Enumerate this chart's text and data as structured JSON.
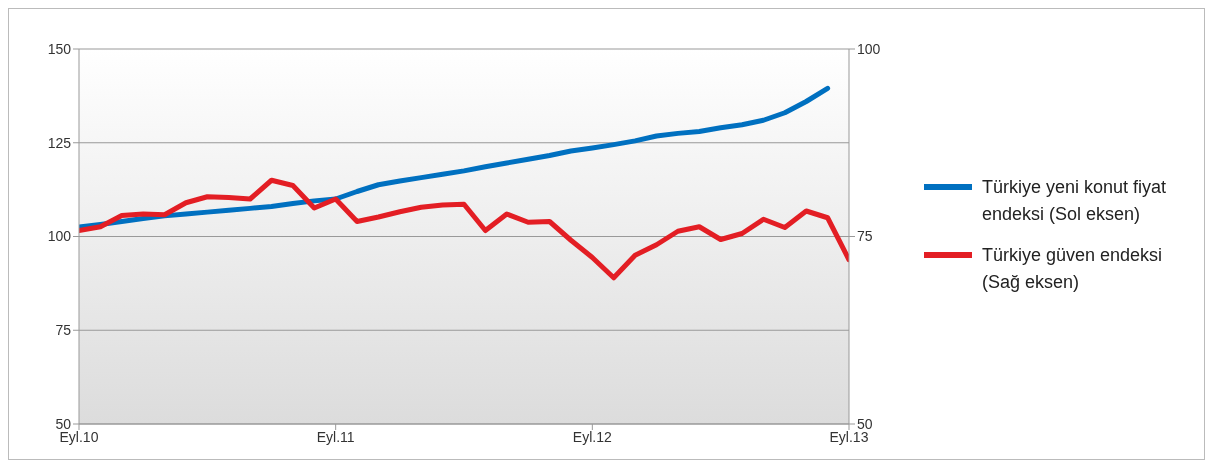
{
  "chart_data": {
    "type": "line",
    "x": [
      "2010-09",
      "2010-10",
      "2010-11",
      "2010-12",
      "2011-01",
      "2011-02",
      "2011-03",
      "2011-04",
      "2011-05",
      "2011-06",
      "2011-07",
      "2011-08",
      "2011-09",
      "2011-10",
      "2011-11",
      "2011-12",
      "2012-01",
      "2012-02",
      "2012-03",
      "2012-04",
      "2012-05",
      "2012-06",
      "2012-07",
      "2012-08",
      "2012-09",
      "2012-10",
      "2012-11",
      "2012-12",
      "2013-01",
      "2013-02",
      "2013-03",
      "2013-04",
      "2013-05",
      "2013-06",
      "2013-07",
      "2013-08",
      "2013-09"
    ],
    "series": [
      {
        "name": "Türkiye yeni konut fiyat endeksi (Sol eksen)",
        "color": "#0070c0",
        "values": [
          102.5,
          103.2,
          104,
          104.8,
          105.5,
          106,
          106.5,
          107,
          107.5,
          108,
          108.8,
          109.5,
          110,
          112,
          113.8,
          114.8,
          115.7,
          116.6,
          117.5,
          118.6,
          119.6,
          120.6,
          121.6,
          122.8,
          123.6,
          124.5,
          125.5,
          126.8,
          127.5,
          128,
          129,
          129.8,
          131,
          133,
          136,
          139.5,
          null
        ]
      },
      {
        "name": "Türkiye güven endeksi (Sağ eksen)",
        "color": "#e31e24",
        "axis": "y2",
        "values": [
          75.8,
          76.3,
          77.8,
          78,
          77.9,
          79.5,
          80.3,
          80.2,
          80,
          82.5,
          81.8,
          78.8,
          80,
          77,
          77.6,
          78.3,
          78.9,
          79.2,
          79.3,
          75.8,
          78,
          76.9,
          77,
          74.5,
          72.2,
          69.5,
          72.5,
          73.9,
          75.7,
          76.3,
          74.6,
          75.4,
          77.3,
          76.2,
          78.4,
          77.5,
          71.9
        ]
      }
    ],
    "xlim": [
      "2010-09",
      "2013-09"
    ],
    "xticks": [
      {
        "value": "2010-09",
        "label": "Eyl.10"
      },
      {
        "value": "2011-09",
        "label": "Eyl.11"
      },
      {
        "value": "2012-09",
        "label": "Eyl.12"
      },
      {
        "value": "2013-09",
        "label": "Eyl.13"
      }
    ],
    "ylim": [
      50,
      150
    ],
    "yticks": [
      50,
      75,
      100,
      125,
      150
    ],
    "y2lim": [
      50,
      100
    ],
    "y2ticks": [
      50,
      75,
      100
    ],
    "grid": "y",
    "legend": "right",
    "marker": "none",
    "line_style": "solid"
  }
}
